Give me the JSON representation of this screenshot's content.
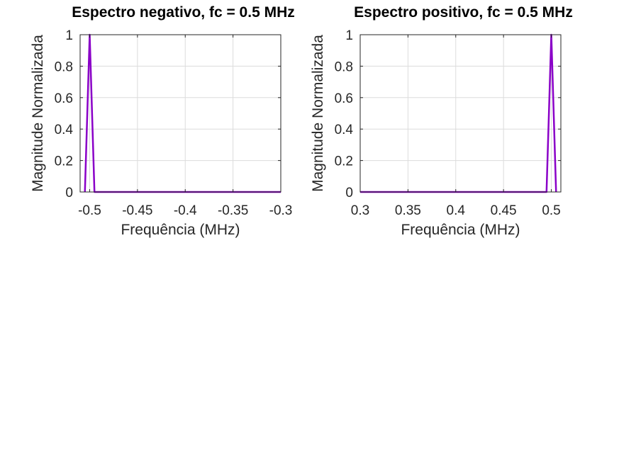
{
  "chart_data": [
    {
      "type": "line",
      "title": "Espectro negativo, fc = 0.5 MHz",
      "xlabel": "Frequência (MHz)",
      "ylabel": "Magnitude Normalizada",
      "xlim": [
        -0.51,
        -0.3
      ],
      "ylim": [
        0,
        1
      ],
      "xticks": [
        -0.5,
        -0.45,
        -0.4,
        -0.35,
        -0.3
      ],
      "xtick_labels": [
        "-0.5",
        "-0.45",
        "-0.4",
        "-0.35",
        "-0.3"
      ],
      "yticks": [
        0,
        0.2,
        0.4,
        0.6,
        0.8,
        1
      ],
      "ytick_labels": [
        "0",
        "0.2",
        "0.4",
        "0.6",
        "0.8",
        "1"
      ],
      "grid": true,
      "series": [
        {
          "color": "#8a00c8",
          "x": [
            -0.505,
            -0.5,
            -0.495,
            -0.49,
            -0.45,
            -0.4,
            -0.35,
            -0.3
          ],
          "y": [
            0,
            1,
            0,
            0,
            0,
            0,
            0,
            0
          ]
        }
      ]
    },
    {
      "type": "line",
      "title": "Espectro positivo, fc = 0.5 MHz",
      "xlabel": "Frequência (MHz)",
      "ylabel": "Magnitude Normalizada",
      "xlim": [
        0.3,
        0.51
      ],
      "ylim": [
        0,
        1
      ],
      "xticks": [
        0.3,
        0.35,
        0.4,
        0.45,
        0.5
      ],
      "xtick_labels": [
        "0.3",
        "0.35",
        "0.4",
        "0.45",
        "0.5"
      ],
      "yticks": [
        0,
        0.2,
        0.4,
        0.6,
        0.8,
        1
      ],
      "ytick_labels": [
        "0",
        "0.2",
        "0.4",
        "0.6",
        "0.8",
        "1"
      ],
      "grid": true,
      "series": [
        {
          "color": "#8a00c8",
          "x": [
            0.3,
            0.35,
            0.4,
            0.45,
            0.49,
            0.495,
            0.5,
            0.505
          ],
          "y": [
            0,
            0,
            0,
            0,
            0,
            0,
            1,
            0
          ]
        }
      ]
    }
  ]
}
